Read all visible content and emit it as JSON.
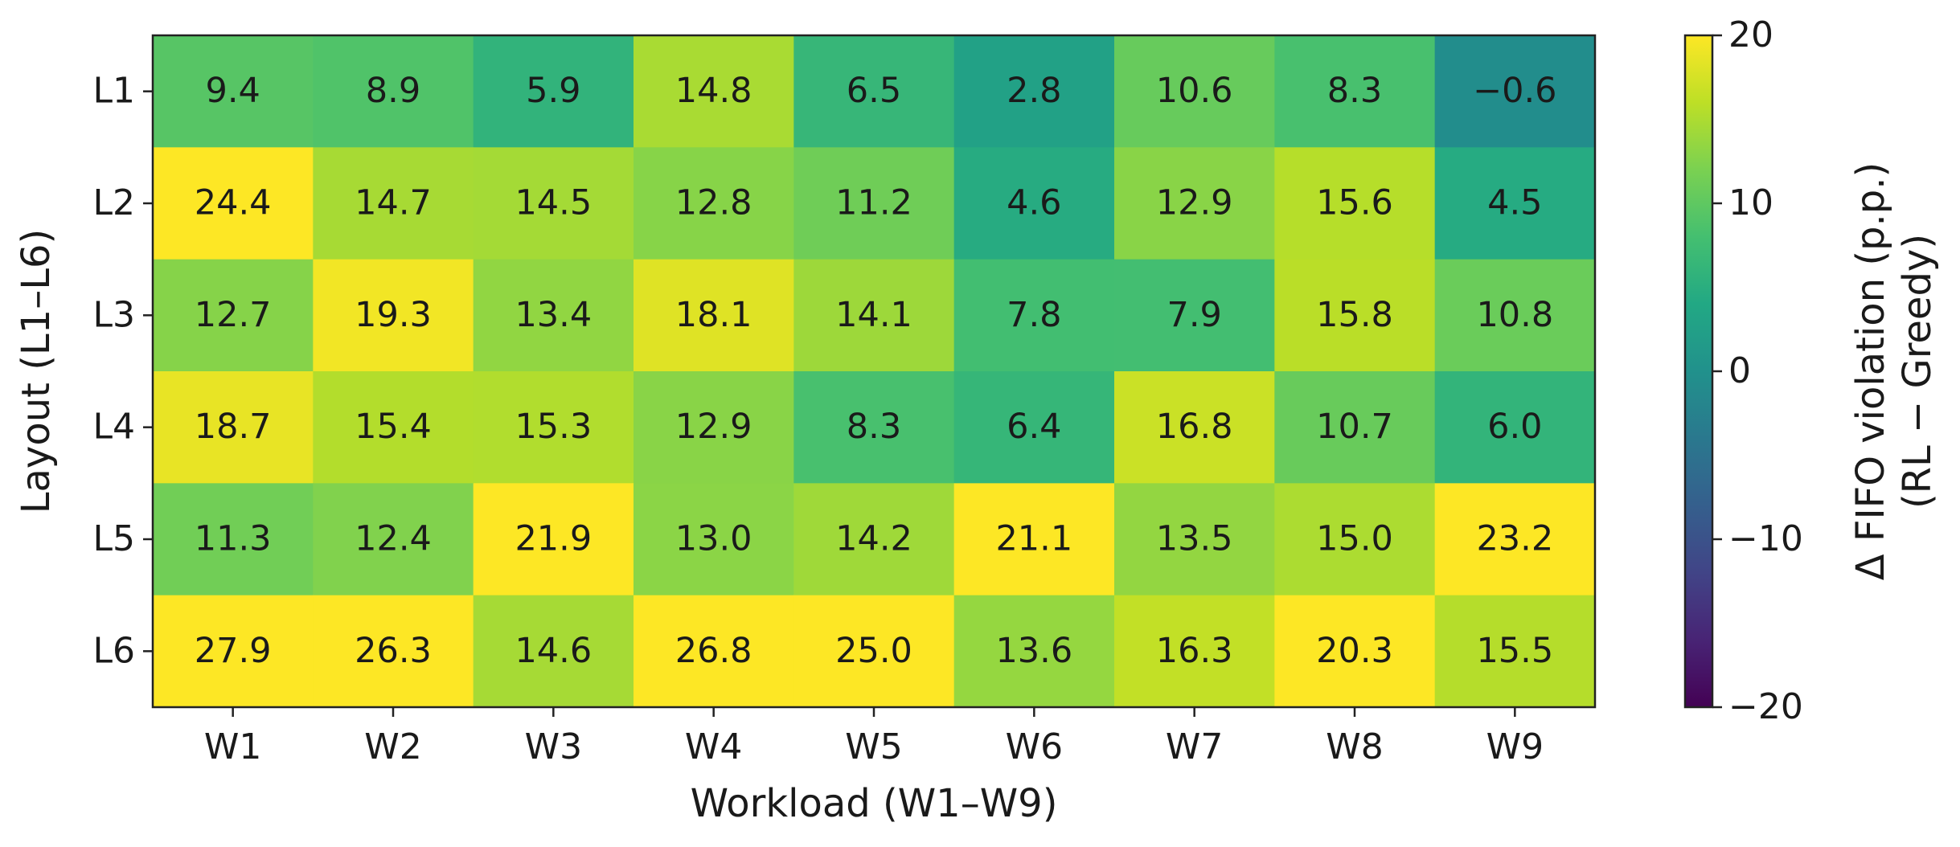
{
  "chart_data": {
    "type": "heatmap",
    "x_label": "Workload (W1–W9)",
    "y_label": "Layout (L1–L6)",
    "colorbar_label": [
      "Δ FIFO violation (p.p.)",
      "(RL − Greedy)"
    ],
    "categories": [
      "W1",
      "W2",
      "W3",
      "W4",
      "W5",
      "W6",
      "W7",
      "W8",
      "W9"
    ],
    "rows": [
      "L1",
      "L2",
      "L3",
      "L4",
      "L5",
      "L6"
    ],
    "values": [
      [
        9.4,
        8.9,
        5.9,
        14.8,
        6.5,
        2.8,
        10.6,
        8.3,
        -0.6
      ],
      [
        24.4,
        14.7,
        14.5,
        12.8,
        11.2,
        4.6,
        12.9,
        15.6,
        4.5
      ],
      [
        12.7,
        19.3,
        13.4,
        18.1,
        14.1,
        7.8,
        7.9,
        15.8,
        10.8
      ],
      [
        18.7,
        15.4,
        15.3,
        12.9,
        8.3,
        6.4,
        16.8,
        10.7,
        6.0
      ],
      [
        11.3,
        12.4,
        21.9,
        13.0,
        14.2,
        21.1,
        13.5,
        15.0,
        23.2
      ],
      [
        27.9,
        26.3,
        14.6,
        26.8,
        25.0,
        13.6,
        16.3,
        20.3,
        15.5
      ]
    ],
    "value_labels": [
      [
        "9.4",
        "8.9",
        "5.9",
        "14.8",
        "6.5",
        "2.8",
        "10.6",
        "8.3",
        "−0.6"
      ],
      [
        "24.4",
        "14.7",
        "14.5",
        "12.8",
        "11.2",
        "4.6",
        "12.9",
        "15.6",
        "4.5"
      ],
      [
        "12.7",
        "19.3",
        "13.4",
        "18.1",
        "14.1",
        "7.8",
        "7.9",
        "15.8",
        "10.8"
      ],
      [
        "18.7",
        "15.4",
        "15.3",
        "12.9",
        "8.3",
        "6.4",
        "16.8",
        "10.7",
        "6.0"
      ],
      [
        "11.3",
        "12.4",
        "21.9",
        "13.0",
        "14.2",
        "21.1",
        "13.5",
        "15.0",
        "23.2"
      ],
      [
        "27.9",
        "26.3",
        "14.6",
        "26.8",
        "25.0",
        "13.6",
        "16.3",
        "20.3",
        "15.5"
      ]
    ],
    "colormap": "viridis",
    "clim": [
      -20,
      20
    ],
    "cticks": [
      {
        "value": -20,
        "label": "−20"
      },
      {
        "value": -10,
        "label": "−10"
      },
      0,
      10,
      20
    ]
  }
}
